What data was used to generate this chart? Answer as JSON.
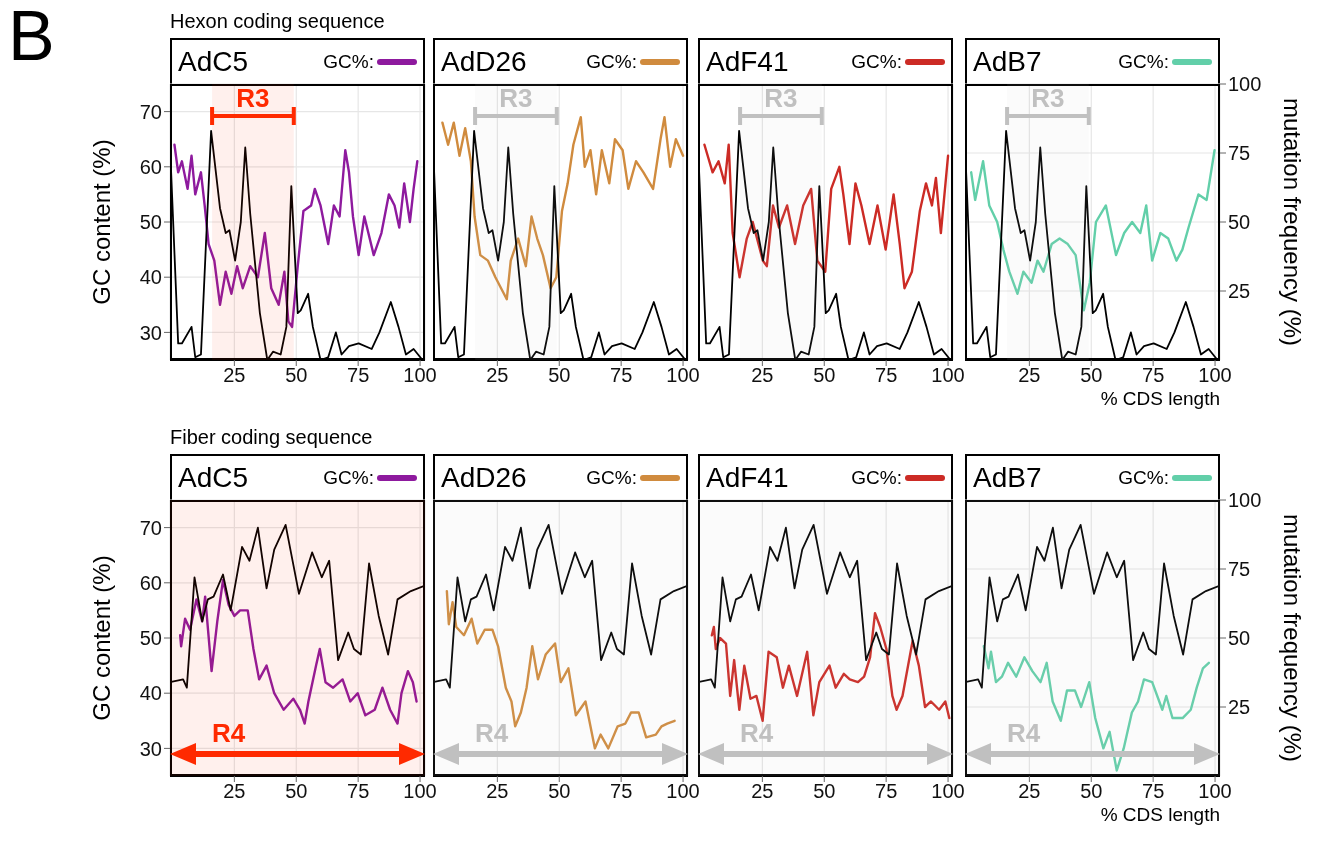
{
  "chart_data": [
    {
      "type": "line",
      "title": "AdC5",
      "subtitle": "Hexon coding sequence",
      "annotations": [
        "B"
      ],
      "ylabel": "GC content (%)",
      "xlim": [
        -1,
        102
      ],
      "xticks": [
        25,
        50,
        75,
        100
      ],
      "ylim": [
        25,
        75
      ],
      "yticks": [
        30,
        40,
        50,
        60,
        70
      ],
      "y2lim": [
        0,
        100
      ],
      "grid": true,
      "legend": "top right",
      "tick_labels": "x y",
      "bands": [
        {
          "axis": "x",
          "from": 16,
          "to": 49,
          "label": "R3",
          "color": "#ff2a00"
        }
      ],
      "series": [
        {
          "name": "GC%:",
          "color": "#8e1a9e",
          "x": [
            0.8,
            2.3,
            3.8,
            6.1,
            7.7,
            9.2,
            11.5,
            13,
            14.6,
            16.9,
            19.2,
            21.5,
            23.8,
            26.1,
            28.4,
            31.4,
            34.5,
            37.3,
            39.9,
            42.9,
            45.2,
            46.8,
            48.3,
            50.6,
            52.9,
            56,
            57.5,
            59.8,
            62.9,
            65.2,
            67.5,
            69.8,
            71.3,
            72.9,
            75.2,
            77.5,
            81.3,
            84.4,
            87.4,
            89.7,
            91.6,
            93.6,
            95.9,
            97.4,
            98.9
          ],
          "values": [
            64,
            59,
            61,
            56,
            62,
            55,
            59,
            53,
            46,
            43,
            35,
            41,
            37,
            42,
            38,
            42,
            40,
            48,
            38,
            35,
            41,
            32,
            31,
            42,
            52,
            53,
            56,
            53,
            46,
            53,
            51,
            63,
            59,
            51,
            44,
            51,
            44,
            48,
            55,
            53,
            49,
            57,
            50,
            56,
            61
          ]
        },
        {
          "color": "#000000",
          "axis": "y2",
          "x": [
            -1,
            2.3,
            3.8,
            7.7,
            9.2,
            11.5,
            15.6,
            19.2,
            21.5,
            23,
            25.3,
            27.6,
            29.4,
            31.4,
            35.3,
            38.3,
            40.6,
            43.7,
            46,
            48,
            50.6,
            51.8,
            54.8,
            56.7,
            59.8,
            62.9,
            66,
            68.3,
            71.3,
            75.2,
            80.5,
            83.6,
            88.2,
            91.3,
            94.3,
            97.4,
            101
          ],
          "values": [
            78,
            6,
            6,
            12,
            1,
            2,
            83,
            55,
            46,
            47,
            36,
            50,
            77,
            53,
            17,
            0,
            3,
            2,
            12,
            63,
            17,
            18,
            24,
            12,
            0,
            1,
            10,
            2,
            5,
            6,
            4,
            10,
            21,
            12,
            2,
            4,
            0
          ]
        }
      ]
    },
    {
      "type": "line",
      "title": "AdD26",
      "xlim": [
        -1,
        102
      ],
      "xticks": [
        25,
        50,
        75,
        100
      ],
      "ylim": [
        25,
        75
      ],
      "yticks": [
        30,
        40,
        50,
        60,
        70
      ],
      "y2lim": [
        0,
        100
      ],
      "y2ticks": [
        25,
        50,
        75,
        100
      ],
      "grid": true,
      "legend": "top right",
      "tick_labels": "x",
      "bands": [
        {
          "axis": "x",
          "from": 16,
          "to": 49,
          "label": "R3",
          "color": "#c0c0c0"
        }
      ],
      "series": [
        {
          "name": "GC%:",
          "color": "#d08b3e",
          "x": [
            2.8,
            5.1,
            7.4,
            9.7,
            12,
            14.3,
            15.8,
            18.1,
            21.2,
            24.2,
            26.5,
            28.8,
            30.4,
            33.4,
            36.5,
            38.8,
            41.1,
            43.4,
            46.5,
            48.8,
            51.1,
            53.4,
            55.7,
            58.7,
            60.3,
            62.6,
            64.9,
            67.2,
            70.2,
            72.5,
            75.6,
            77.9,
            81,
            84,
            87.9,
            90.9,
            92.5,
            94.8,
            97.1,
            100
          ],
          "values": [
            68,
            64,
            68,
            62,
            67,
            61,
            51,
            44,
            43,
            40,
            38,
            36,
            43,
            47,
            42,
            51,
            47,
            44,
            38,
            40,
            52,
            57,
            64,
            69,
            60,
            63,
            55,
            63,
            57,
            65,
            63,
            56,
            61,
            59,
            56,
            65,
            69,
            60,
            65,
            62
          ]
        },
        {
          "color": "#000000",
          "axis": "y2",
          "x": [
            -1,
            2.3,
            3.8,
            7.7,
            9.2,
            11.5,
            15.6,
            19.2,
            21.5,
            23,
            25.3,
            27.6,
            29.4,
            31.4,
            35.3,
            38.3,
            40.6,
            43.7,
            46,
            48,
            50.6,
            51.8,
            54.8,
            56.7,
            59.8,
            62.9,
            66,
            68.3,
            71.3,
            75.2,
            80.5,
            83.6,
            88.2,
            91.3,
            94.3,
            97.4,
            101
          ],
          "values": [
            78,
            6,
            6,
            12,
            1,
            2,
            83,
            55,
            46,
            47,
            36,
            50,
            77,
            53,
            17,
            0,
            3,
            2,
            12,
            63,
            17,
            18,
            24,
            12,
            0,
            1,
            10,
            2,
            5,
            6,
            4,
            10,
            21,
            12,
            2,
            4,
            0
          ]
        }
      ]
    },
    {
      "type": "line",
      "title": "AdF41",
      "xlim": [
        -1,
        102
      ],
      "xticks": [
        25,
        50,
        75,
        100
      ],
      "ylim": [
        25,
        75
      ],
      "yticks": [
        30,
        40,
        50,
        60,
        70
      ],
      "y2lim": [
        0,
        100
      ],
      "y2ticks": [
        25,
        50,
        75,
        100
      ],
      "grid": true,
      "legend": "top right",
      "tick_labels": "x",
      "bands": [
        {
          "axis": "x",
          "from": 16,
          "to": 49,
          "label": "R3",
          "color": "#c0c0c0"
        }
      ],
      "series": [
        {
          "name": "GC%:",
          "color": "#cc2b25",
          "x": [
            1.6,
            4.9,
            7.3,
            9.8,
            11.4,
            13,
            15.8,
            18.7,
            21.1,
            25.2,
            26.8,
            29.3,
            31.7,
            35,
            38.2,
            41.5,
            44.7,
            47.2,
            50.4,
            52.8,
            56.1,
            57.7,
            60.2,
            62.6,
            65,
            68.3,
            71.5,
            74.8,
            78,
            80.5,
            82.4,
            85.4,
            88.6,
            91.1,
            93.5,
            95.1,
            97.1,
            100
          ],
          "values": [
            64,
            59,
            61,
            57,
            64,
            48,
            40,
            47,
            50,
            43,
            42,
            53,
            49,
            53,
            46,
            53,
            56,
            43,
            41,
            56,
            60,
            55,
            46,
            57,
            53,
            46,
            53,
            45,
            55,
            46,
            38,
            41,
            52,
            57,
            53,
            58,
            48,
            62
          ]
        },
        {
          "color": "#000000",
          "axis": "y2",
          "x": [
            -1,
            2.3,
            3.8,
            7.7,
            9.2,
            11.5,
            15.6,
            19.2,
            21.5,
            23,
            25.3,
            27.6,
            29.4,
            31.4,
            35.3,
            38.3,
            40.6,
            43.7,
            46,
            48,
            50.6,
            51.8,
            54.8,
            56.7,
            59.8,
            62.9,
            66,
            68.3,
            71.3,
            75.2,
            80.5,
            83.6,
            88.2,
            91.3,
            94.3,
            97.4,
            101
          ],
          "values": [
            78,
            6,
            6,
            12,
            1,
            2,
            83,
            55,
            46,
            47,
            36,
            50,
            77,
            53,
            17,
            0,
            3,
            2,
            12,
            63,
            17,
            18,
            24,
            12,
            0,
            1,
            10,
            2,
            5,
            6,
            4,
            10,
            21,
            12,
            2,
            4,
            0
          ]
        }
      ]
    },
    {
      "type": "line",
      "title": "AdB7",
      "xlabel": "% CDS length",
      "y2label": "mutation frequency (%)",
      "xlim": [
        -1,
        102
      ],
      "xticks": [
        25,
        50,
        75,
        100
      ],
      "ylim": [
        25,
        75
      ],
      "y2lim": [
        0,
        100
      ],
      "y2ticks": [
        25,
        50,
        75,
        100
      ],
      "grid": true,
      "legend": "top right",
      "tick_labels": "x y2",
      "bands": [
        {
          "axis": "x",
          "from": 16,
          "to": 49,
          "label": "R3",
          "color": "#c0c0c0"
        }
      ],
      "series": [
        {
          "name": "GC%:",
          "color": "#62cfa9",
          "x": [
            1.5,
            3.1,
            6.3,
            8.8,
            12,
            14.5,
            16.9,
            20.2,
            22.6,
            25.9,
            28.3,
            30.7,
            34,
            37.2,
            40.5,
            43.7,
            47,
            49.4,
            51.9,
            55.9,
            60,
            63.3,
            66.5,
            69.8,
            72.2,
            74.6,
            77.9,
            81.1,
            84.4,
            86.8,
            89.3,
            93.3,
            96.6,
            99.8
          ],
          "values": [
            59,
            54,
            61,
            53,
            50,
            45,
            41,
            37,
            41,
            39,
            43,
            41,
            46,
            47,
            46,
            44,
            34,
            39,
            50,
            53,
            44,
            48,
            50,
            48,
            53,
            43,
            48,
            47,
            43,
            45,
            49,
            55,
            54,
            63
          ]
        },
        {
          "color": "#000000",
          "axis": "y2",
          "x": [
            -1,
            2.3,
            3.8,
            7.7,
            9.2,
            11.5,
            15.6,
            19.2,
            21.5,
            23,
            25.3,
            27.6,
            29.4,
            31.4,
            35.3,
            38.3,
            40.6,
            43.7,
            46,
            48,
            50.6,
            51.8,
            54.8,
            56.7,
            59.8,
            62.9,
            66,
            68.3,
            71.3,
            75.2,
            80.5,
            83.6,
            88.2,
            91.3,
            94.3,
            97.4,
            101
          ],
          "values": [
            78,
            6,
            6,
            12,
            1,
            2,
            83,
            55,
            46,
            47,
            36,
            50,
            77,
            53,
            17,
            0,
            3,
            2,
            12,
            63,
            17,
            18,
            24,
            12,
            0,
            1,
            10,
            2,
            5,
            6,
            4,
            10,
            21,
            12,
            2,
            4,
            0
          ]
        }
      ]
    },
    {
      "type": "line",
      "title": "AdC5",
      "subtitle": "Fiber coding sequence",
      "ylabel": "GC content (%)",
      "xlim": [
        -1,
        102
      ],
      "xticks": [
        25,
        50,
        75,
        100
      ],
      "ylim": [
        25,
        75
      ],
      "yticks": [
        30,
        40,
        50,
        60,
        70
      ],
      "y2lim": [
        0,
        100
      ],
      "grid": true,
      "legend": "top right",
      "tick_labels": "x y",
      "bands": [
        {
          "axis": "x",
          "from": -1,
          "to": 102,
          "label": "R4",
          "color": "#ff2a00"
        }
      ],
      "series": [
        {
          "name": "GC%:",
          "color": "#8e1a9e",
          "x": [
            3.1,
            3.5,
            5.1,
            7.1,
            9.7,
            12,
            13.2,
            15.8,
            18.1,
            20.4,
            22.7,
            25,
            27.3,
            30.4,
            32.7,
            35,
            38,
            41.1,
            44.9,
            48.8,
            51.5,
            53.4,
            54.9,
            58,
            59.5,
            61.8,
            64.9,
            68.7,
            71.8,
            74.8,
            77.9,
            81.7,
            84.8,
            87.9,
            90.9,
            92.5,
            95.1,
            97.1,
            98.6
          ],
          "values": [
            50.5,
            48.5,
            53.5,
            51.5,
            57,
            53,
            57.5,
            44,
            53,
            60.5,
            56,
            54,
            55,
            55,
            48,
            42.5,
            45,
            40,
            37,
            39,
            37,
            34.5,
            38.5,
            45,
            48,
            42,
            41,
            42.5,
            38.5,
            40,
            36,
            37,
            41,
            37,
            34.5,
            40,
            44,
            42,
            38.5
          ]
        },
        {
          "color": "#000000",
          "axis": "y2",
          "x": [
            -1,
            4.3,
            5.8,
            8.9,
            12,
            14.3,
            16.6,
            20.4,
            23.5,
            28.1,
            31.1,
            34.5,
            38,
            41.1,
            45.7,
            51.1,
            56.4,
            60.3,
            63.3,
            66.9,
            71,
            73.3,
            76.1,
            79.4,
            83.3,
            87.1,
            90.9,
            96.3,
            102
          ],
          "values": [
            34,
            35,
            32,
            72,
            56,
            64,
            65,
            73,
            60,
            83,
            78,
            90,
            68,
            82,
            91,
            66,
            81,
            72,
            78,
            42,
            52,
            46,
            44,
            77,
            58,
            44,
            64,
            67,
            69
          ]
        }
      ]
    },
    {
      "type": "line",
      "title": "AdD26",
      "xlim": [
        -1,
        102
      ],
      "xticks": [
        25,
        50,
        75,
        100
      ],
      "ylim": [
        25,
        75
      ],
      "yticks": [
        30,
        40,
        50,
        60,
        70
      ],
      "y2lim": [
        0,
        100
      ],
      "y2ticks": [
        25,
        50,
        75,
        100
      ],
      "grid": true,
      "legend": "top right",
      "tick_labels": "x",
      "bands": [
        {
          "axis": "x",
          "from": -1,
          "to": 102,
          "label": "R4",
          "color": "#c0c0c0"
        }
      ],
      "series": [
        {
          "name": "GC%:",
          "color": "#d08b3e",
          "x": [
            4.6,
            5.4,
            6.9,
            8.4,
            11.5,
            14.6,
            16.9,
            19.9,
            23,
            25.3,
            28.4,
            30.7,
            32.2,
            34.5,
            36.8,
            39.1,
            41.4,
            44.5,
            48.3,
            50.6,
            53.7,
            56.7,
            60.6,
            64.4,
            66.7,
            69.8,
            73.6,
            76.7,
            79,
            82.1,
            85.1,
            89,
            91.3,
            93.6,
            96.6
          ],
          "values": [
            58.5,
            52.5,
            56.5,
            52,
            50.5,
            53.5,
            49,
            51.5,
            51.5,
            48.5,
            41,
            38.5,
            34,
            36.5,
            41,
            48.5,
            42.5,
            47,
            49,
            42,
            44.5,
            36,
            38.5,
            30,
            32.5,
            30,
            34,
            34.5,
            36.5,
            36.5,
            32,
            32.5,
            34,
            34.5,
            35
          ]
        },
        {
          "color": "#000000",
          "axis": "y2",
          "x": [
            -1,
            4.3,
            5.8,
            8.9,
            12,
            14.3,
            16.6,
            20.4,
            23.5,
            28.1,
            31.1,
            34.5,
            38,
            41.1,
            45.7,
            51.1,
            56.4,
            60.3,
            63.3,
            66.9,
            71,
            73.3,
            76.1,
            79.4,
            83.3,
            87.1,
            90.9,
            96.3,
            102
          ],
          "values": [
            34,
            35,
            32,
            72,
            56,
            64,
            65,
            73,
            60,
            83,
            78,
            90,
            68,
            82,
            91,
            66,
            81,
            72,
            78,
            42,
            52,
            46,
            44,
            77,
            58,
            44,
            64,
            67,
            69
          ]
        }
      ]
    },
    {
      "type": "line",
      "title": "AdF41",
      "xlim": [
        -1,
        102
      ],
      "xticks": [
        25,
        50,
        75,
        100
      ],
      "ylim": [
        25,
        75
      ],
      "yticks": [
        30,
        40,
        50,
        60,
        70
      ],
      "y2lim": [
        0,
        100
      ],
      "y2ticks": [
        25,
        50,
        75,
        100
      ],
      "grid": true,
      "legend": "top right",
      "tick_labels": "x",
      "bands": [
        {
          "axis": "x",
          "from": -1,
          "to": 102,
          "label": "R4",
          "color": "#c0c0c0"
        }
      ],
      "series": [
        {
          "name": "GC%:",
          "color": "#cc2b25",
          "x": [
            4.6,
            5.4,
            6.2,
            7.9,
            10.3,
            12,
            13.6,
            15.7,
            17.7,
            20.2,
            22.6,
            25.1,
            27.5,
            30.8,
            33.3,
            35.7,
            39,
            43.1,
            45.6,
            48,
            52.1,
            54.6,
            57.9,
            60.3,
            63.6,
            66.1,
            68.5,
            70.5,
            72.6,
            75.1,
            77.5,
            79.2,
            81.6,
            85.7,
            88.2,
            90.7,
            93.1,
            96.4,
            98.9,
            100.5
          ],
          "values": [
            50.5,
            52,
            48,
            50,
            49,
            39.5,
            46,
            37,
            45,
            39,
            39.5,
            35,
            47.5,
            46.5,
            41,
            45,
            39.5,
            47.5,
            36,
            42,
            45,
            41,
            43.5,
            42.5,
            42,
            43,
            46.5,
            54.5,
            52,
            48,
            39.5,
            37,
            39.5,
            49.5,
            45,
            37.5,
            38.5,
            37,
            38.5,
            35.5
          ]
        },
        {
          "color": "#000000",
          "axis": "y2",
          "x": [
            -1,
            4.3,
            5.8,
            8.9,
            12,
            14.3,
            16.6,
            20.4,
            23.5,
            28.1,
            31.1,
            34.5,
            38,
            41.1,
            45.7,
            51.1,
            56.4,
            60.3,
            63.3,
            66.9,
            71,
            73.3,
            76.1,
            79.4,
            83.3,
            87.1,
            90.9,
            96.3,
            102
          ],
          "values": [
            34,
            35,
            32,
            72,
            56,
            64,
            65,
            73,
            60,
            83,
            78,
            90,
            68,
            82,
            91,
            66,
            81,
            72,
            78,
            42,
            52,
            46,
            44,
            77,
            58,
            44,
            64,
            67,
            69
          ]
        }
      ]
    },
    {
      "type": "line",
      "title": "AdB7",
      "xlabel": "% CDS length",
      "y2label": "mutation frequency (%)",
      "xlim": [
        -1,
        102
      ],
      "xticks": [
        25,
        50,
        75,
        100
      ],
      "ylim": [
        25,
        75
      ],
      "y2lim": [
        0,
        100
      ],
      "y2ticks": [
        25,
        50,
        75,
        100
      ],
      "grid": true,
      "legend": "top right",
      "tick_labels": "x y2",
      "bands": [
        {
          "axis": "x",
          "from": -1,
          "to": 102,
          "label": "R4",
          "color": "#c0c0c0"
        }
      ],
      "series": [
        {
          "name": "GC%:",
          "color": "#62cfa9",
          "x": [
            6.6,
            8.5,
            9.5,
            11.5,
            13.9,
            16.4,
            19.7,
            23,
            26.2,
            29.5,
            32,
            34.4,
            37.7,
            40.2,
            43.4,
            45.9,
            49.2,
            51.6,
            54.9,
            57.4,
            60.3,
            63.1,
            66.4,
            68.9,
            71.3,
            74.6,
            78.7,
            80.3,
            82.8,
            86.9,
            90.2,
            92.6,
            95.1,
            97.5
          ],
          "values": [
            48.5,
            44.5,
            47.5,
            42,
            43,
            45.5,
            43,
            46.5,
            44,
            42,
            45.5,
            38.5,
            35,
            40.5,
            40.5,
            37.5,
            42,
            35.5,
            30,
            33,
            26,
            30,
            36.5,
            38.5,
            42.5,
            42,
            37,
            39.5,
            35.5,
            35.5,
            37,
            41,
            44.5,
            45.5
          ]
        },
        {
          "color": "#000000",
          "axis": "y2",
          "x": [
            -1,
            4.3,
            5.8,
            8.9,
            12,
            14.3,
            16.6,
            20.4,
            23.5,
            28.1,
            31.1,
            34.5,
            38,
            41.1,
            45.7,
            51.1,
            56.4,
            60.3,
            63.3,
            66.9,
            71,
            73.3,
            76.1,
            79.4,
            83.3,
            87.1,
            90.9,
            96.3,
            102
          ],
          "values": [
            34,
            35,
            32,
            72,
            56,
            64,
            65,
            73,
            60,
            83,
            78,
            90,
            68,
            82,
            91,
            66,
            81,
            72,
            78,
            42,
            52,
            46,
            44,
            77,
            58,
            44,
            64,
            67,
            69
          ]
        }
      ]
    }
  ]
}
